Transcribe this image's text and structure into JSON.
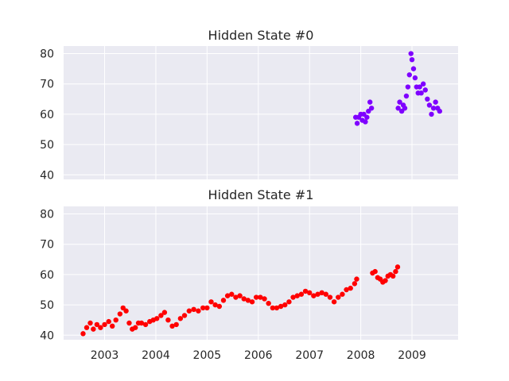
{
  "chart_data": [
    {
      "type": "scatter",
      "title": "Hidden State #0",
      "xlabel": "",
      "ylabel": "",
      "ylim": [
        38.5,
        82.5
      ],
      "yticks": [
        40,
        50,
        60,
        70,
        80
      ],
      "grid": true,
      "color": "#7f00ff",
      "series": [
        {
          "x": [
            2007.9,
            2007.93,
            2007.96,
            2008.0,
            2008.03,
            2008.06,
            2008.09,
            2008.12,
            2008.15,
            2008.18,
            2008.21,
            2008.73,
            2008.76,
            2008.8,
            2008.83,
            2008.86,
            2008.89,
            2008.92,
            2008.95,
            2008.98,
            2009.0,
            2009.03,
            2009.06,
            2009.09,
            2009.12,
            2009.15,
            2009.18,
            2009.22,
            2009.26,
            2009.3,
            2009.34,
            2009.38,
            2009.42,
            2009.46,
            2009.5,
            2009.54
          ],
          "y": [
            59,
            57,
            59,
            60,
            58,
            60,
            57.5,
            59,
            61,
            64,
            62,
            62,
            64,
            61,
            63,
            62,
            66,
            69,
            73,
            80,
            78,
            75,
            72,
            69,
            67,
            69,
            67,
            70,
            68,
            65,
            63,
            60,
            62,
            64,
            62,
            61
          ]
        }
      ]
    },
    {
      "type": "scatter",
      "title": "Hidden State #1",
      "xlabel": "",
      "ylabel": "",
      "ylim": [
        38.5,
        82.5
      ],
      "yticks": [
        40,
        50,
        60,
        70,
        80
      ],
      "xticks": [
        "2003",
        "2004",
        "2005",
        "2006",
        "2007",
        "2008",
        "2009"
      ],
      "xlim": [
        2002.2,
        2009.9
      ],
      "grid": true,
      "color": "#ff0000",
      "series": [
        {
          "x": [
            2002.58,
            2002.65,
            2002.72,
            2002.78,
            2002.85,
            2002.92,
            2003.0,
            2003.08,
            2003.15,
            2003.22,
            2003.3,
            2003.36,
            2003.42,
            2003.48,
            2003.54,
            2003.6,
            2003.66,
            2003.72,
            2003.8,
            2003.88,
            2003.95,
            2004.02,
            2004.1,
            2004.17,
            2004.24,
            2004.32,
            2004.4,
            2004.48,
            2004.56,
            2004.65,
            2004.74,
            2004.83,
            2004.92,
            2005.0,
            2005.08,
            2005.16,
            2005.24,
            2005.32,
            2005.4,
            2005.48,
            2005.56,
            2005.64,
            2005.72,
            2005.8,
            2005.88,
            2005.96,
            2006.04,
            2006.12,
            2006.2,
            2006.28,
            2006.36,
            2006.44,
            2006.52,
            2006.6,
            2006.68,
            2006.76,
            2006.84,
            2006.92,
            2007.0,
            2007.08,
            2007.16,
            2007.24,
            2007.32,
            2007.4,
            2007.48,
            2007.56,
            2007.64,
            2007.72,
            2007.8,
            2007.88,
            2007.92,
            2008.23,
            2008.28,
            2008.33,
            2008.38,
            2008.43,
            2008.48,
            2008.53,
            2008.58,
            2008.63,
            2008.68,
            2008.72
          ],
          "y": [
            40.5,
            42.5,
            44,
            42,
            43.5,
            42.5,
            43.5,
            44.5,
            43,
            45,
            47,
            49,
            48,
            44,
            42,
            42.5,
            44,
            44,
            43.5,
            44.5,
            45,
            45.5,
            46.5,
            47.5,
            45,
            43,
            43.5,
            45.5,
            46.5,
            48,
            48.5,
            48,
            49,
            49,
            51,
            50,
            49.5,
            51.5,
            53,
            53.5,
            52.5,
            53,
            52,
            51.5,
            51,
            52.5,
            52.5,
            52,
            50.5,
            49,
            49,
            49.5,
            50,
            51,
            52.5,
            53,
            53.5,
            54.5,
            54,
            53,
            53.5,
            54,
            53.5,
            52.5,
            51,
            52.5,
            53.5,
            55,
            55.5,
            57,
            58.5,
            60.5,
            61,
            59,
            58.5,
            57.5,
            58,
            59.5,
            60,
            59.5,
            61,
            62.5
          ]
        }
      ]
    }
  ]
}
